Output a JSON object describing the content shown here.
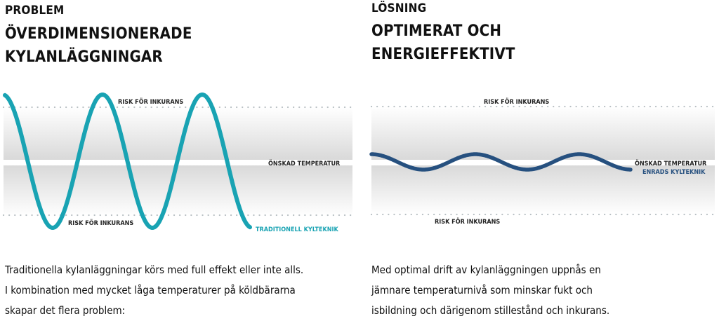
{
  "left": {
    "kicker": "PROBLEM",
    "title_lines": [
      "ÖVERDIMENSIONERADE",
      "KYLANLÄGGNINGAR"
    ],
    "risk_top_label": "RISK FÖR INKURANS",
    "desired_label": "ÖNSKAD TEMPERATUR",
    "risk_bottom_label": "RISK FÖR INKURANS",
    "series_label": "TRADITIONELL KYLTEKNIK",
    "series_color": "#19a3b3",
    "amplitude": "large",
    "description_lines": [
      "Traditionella kylanläggningar körs med full effekt eller inte alls.",
      "I kombination med mycket låga temperaturer på köldbärarna",
      "skapar det flera problem:"
    ]
  },
  "right": {
    "kicker": "LÖSNING",
    "title_lines": [
      "OPTIMERAT OCH",
      "ENERGIEFFEKTIVT"
    ],
    "risk_top_label": "RISK FÖR INKURANS",
    "desired_label": "ÖNSKAD TEMPERATUR",
    "series_label": "ENRADS KYLTEKNIK",
    "risk_bottom_label": "RISK FÖR INKURANS",
    "series_color": "#26507f",
    "amplitude": "small",
    "description_lines": [
      "Med optimal drift av kylanläggningen uppnås en",
      "jämnare temperaturnivå som minskar fukt och",
      "isbildning och därigenom stillestånd och inkurans."
    ]
  },
  "colors": {
    "band_gray": "#dcdcdc",
    "dots": "#b9c0c4",
    "teal": "#19a3b3",
    "navy": "#26507f"
  }
}
